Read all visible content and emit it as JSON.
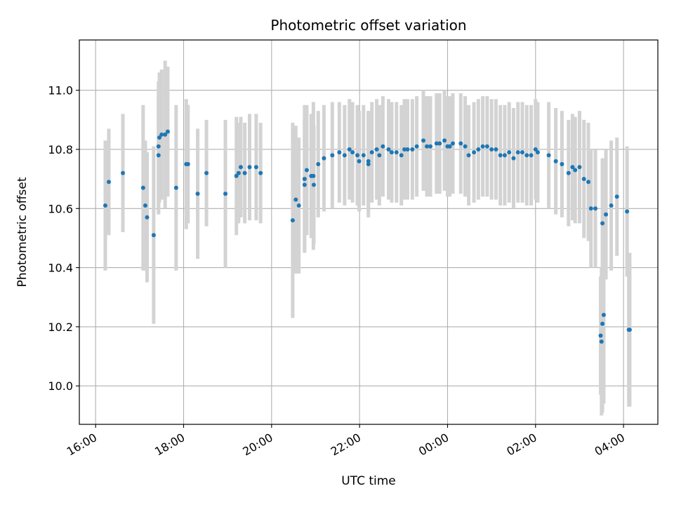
{
  "chart_data": {
    "type": "scatter",
    "title": "Photometric offset variation",
    "xlabel": "UTC time",
    "ylabel": "Photometric offset",
    "x_ticks": [
      {
        "hours": 16,
        "label": "16:00"
      },
      {
        "hours": 18,
        "label": "18:00"
      },
      {
        "hours": 20,
        "label": "20:00"
      },
      {
        "hours": 22,
        "label": "22:00"
      },
      {
        "hours": 24,
        "label": "00:00"
      },
      {
        "hours": 26,
        "label": "02:00"
      },
      {
        "hours": 28,
        "label": "04:00"
      }
    ],
    "y_ticks": [
      10.0,
      10.2,
      10.4,
      10.6,
      10.8,
      11.0
    ],
    "xlim_hours": [
      15.63,
      28.78
    ],
    "ylim": [
      9.87,
      11.17
    ],
    "grid": true,
    "colors": {
      "points": "#1f77b4",
      "error_bars": "#d3d3d3",
      "grid": "#b0b0b0"
    },
    "series": [
      {
        "x": [
          16.22,
          16.3,
          16.62,
          17.08,
          17.13,
          17.17,
          17.32,
          17.43,
          17.43,
          17.58,
          17.64,
          17.83,
          18.06,
          18.1,
          18.32,
          18.52,
          18.95,
          19.2,
          19.25,
          19.3,
          19.39,
          19.5,
          19.65,
          19.75,
          20.48,
          20.55,
          20.62,
          20.75,
          20.8,
          20.9,
          20.96,
          21.06,
          21.19,
          21.38,
          21.54,
          21.66,
          21.77,
          21.84,
          21.95,
          21.99,
          22.09,
          22.2,
          22.28,
          22.39,
          22.45,
          22.53,
          22.66,
          22.73,
          22.84,
          22.95,
          23.02,
          23.09,
          23.2,
          23.3,
          23.45,
          23.53,
          23.61,
          23.75,
          23.82,
          23.93,
          24.0,
          24.12,
          24.3,
          24.4,
          24.48,
          24.6,
          24.7,
          24.8,
          24.9,
          25.0,
          25.1,
          25.2,
          25.3,
          25.4,
          25.5,
          25.6,
          25.7,
          25.8,
          25.9,
          26.0,
          26.05,
          26.3,
          26.46,
          26.6,
          26.75,
          26.84,
          26.9,
          27.0,
          27.1,
          27.2,
          27.26,
          27.36,
          27.52,
          27.6,
          27.72,
          27.85,
          28.08,
          28.14,
          17.5,
          17.45,
          20.75,
          20.95,
          22.2,
          24.05
        ],
        "y": [
          10.61,
          10.69,
          10.72,
          10.67,
          10.61,
          10.57,
          10.51,
          10.78,
          10.81,
          10.85,
          10.86,
          10.67,
          10.75,
          10.75,
          10.65,
          10.72,
          10.65,
          10.71,
          10.72,
          10.74,
          10.72,
          10.74,
          10.74,
          10.72,
          10.56,
          10.63,
          10.61,
          10.68,
          10.73,
          10.71,
          10.68,
          10.75,
          10.77,
          10.78,
          10.79,
          10.78,
          10.8,
          10.79,
          10.78,
          10.76,
          10.78,
          10.76,
          10.79,
          10.8,
          10.78,
          10.81,
          10.8,
          10.79,
          10.79,
          10.78,
          10.8,
          10.8,
          10.8,
          10.81,
          10.83,
          10.81,
          10.81,
          10.82,
          10.82,
          10.83,
          10.81,
          10.82,
          10.82,
          10.81,
          10.78,
          10.79,
          10.8,
          10.81,
          10.81,
          10.8,
          10.8,
          10.78,
          10.78,
          10.79,
          10.77,
          10.79,
          10.79,
          10.78,
          10.78,
          10.8,
          10.79,
          10.78,
          10.76,
          10.75,
          10.72,
          10.74,
          10.73,
          10.74,
          10.7,
          10.69,
          10.6,
          10.6,
          10.55,
          10.58,
          10.61,
          10.64,
          10.59,
          10.19,
          10.85,
          10.84,
          10.7,
          10.71,
          10.75,
          10.81
        ],
        "error": [
          0.22,
          0.18,
          0.2,
          0.28,
          0.22,
          0.22,
          0.3,
          0.2,
          0.22,
          0.25,
          0.22,
          0.28,
          0.22,
          0.2,
          0.22,
          0.18,
          0.25,
          0.2,
          0.17,
          0.17,
          0.17,
          0.18,
          0.18,
          0.17,
          0.33,
          0.25,
          0.23,
          0.22,
          0.22,
          0.21,
          0.2,
          0.18,
          0.18,
          0.18,
          0.17,
          0.17,
          0.17,
          0.17,
          0.17,
          0.17,
          0.17,
          0.17,
          0.17,
          0.17,
          0.17,
          0.17,
          0.17,
          0.17,
          0.17,
          0.17,
          0.17,
          0.17,
          0.17,
          0.17,
          0.17,
          0.17,
          0.17,
          0.17,
          0.17,
          0.17,
          0.17,
          0.17,
          0.17,
          0.17,
          0.17,
          0.17,
          0.17,
          0.17,
          0.17,
          0.17,
          0.17,
          0.17,
          0.17,
          0.17,
          0.17,
          0.17,
          0.17,
          0.17,
          0.17,
          0.17,
          0.17,
          0.18,
          0.18,
          0.18,
          0.18,
          0.18,
          0.18,
          0.19,
          0.2,
          0.2,
          0.2,
          0.2,
          0.22,
          0.22,
          0.22,
          0.2,
          0.22,
          0.26,
          0.22,
          0.22,
          0.25,
          0.25,
          0.18,
          0.17
        ]
      },
      {
        "x": [
          28.12,
          27.52,
          27.55,
          27.5,
          27.48
        ],
        "y": [
          10.19,
          10.21,
          10.24,
          10.15,
          10.17
        ],
        "error": [
          0.26,
          0.3,
          0.3,
          0.25,
          0.2
        ]
      }
    ]
  }
}
